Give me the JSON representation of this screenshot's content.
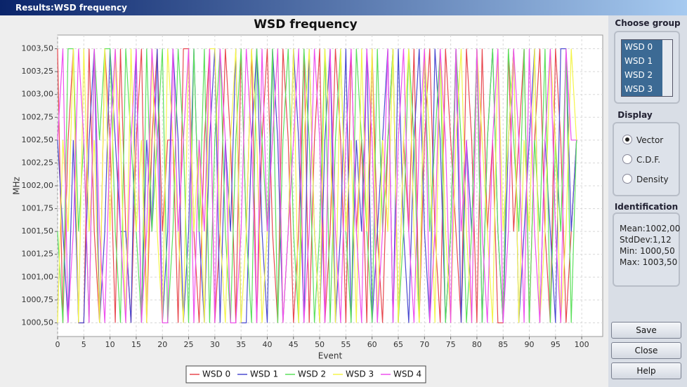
{
  "window": {
    "title": "Results:WSD frequency"
  },
  "chart_data": {
    "type": "line",
    "title": "WSD frequency",
    "x_label": "Event",
    "y_label": "MHz",
    "x": [
      0,
      1,
      2,
      3,
      4,
      5,
      6,
      7,
      8,
      9,
      10,
      11,
      12,
      13,
      14,
      15,
      16,
      17,
      18,
      19,
      20,
      21,
      22,
      23,
      24,
      25,
      26,
      27,
      28,
      29,
      30,
      31,
      32,
      33,
      34,
      35,
      36,
      37,
      38,
      39,
      40,
      41,
      42,
      43,
      44,
      45,
      46,
      47,
      48,
      49,
      50,
      51,
      52,
      53,
      54,
      55,
      56,
      57,
      58,
      59,
      60,
      61,
      62,
      63,
      64,
      65,
      66,
      67,
      68,
      69,
      70,
      71,
      72,
      73,
      74,
      75,
      76,
      77,
      78,
      79,
      80,
      81,
      82,
      83,
      84,
      85,
      86,
      87,
      88,
      89,
      90,
      91,
      92,
      93,
      94,
      95,
      96,
      97,
      98,
      99
    ],
    "xlim": [
      0,
      104
    ],
    "xticks": [
      0,
      5,
      10,
      15,
      20,
      25,
      30,
      35,
      40,
      45,
      50,
      55,
      60,
      65,
      70,
      75,
      80,
      85,
      90,
      95,
      100
    ],
    "ylim": [
      1000.35,
      1003.65
    ],
    "yticks": [
      {
        "value": 1000.5,
        "label": "1000,50"
      },
      {
        "value": 1000.75,
        "label": "1000,75"
      },
      {
        "value": 1001,
        "label": "1001,00"
      },
      {
        "value": 1001.25,
        "label": "1001,25"
      },
      {
        "value": 1001.5,
        "label": "1001,50"
      },
      {
        "value": 1001.75,
        "label": "1001,75"
      },
      {
        "value": 1002,
        "label": "1002,00"
      },
      {
        "value": 1002.25,
        "label": "1002,25"
      },
      {
        "value": 1002.5,
        "label": "1002,50"
      },
      {
        "value": 1002.75,
        "label": "1002,75"
      },
      {
        "value": 1003,
        "label": "1003,00"
      },
      {
        "value": 1003.25,
        "label": "1003,25"
      },
      {
        "value": 1003.5,
        "label": "1003,50"
      }
    ],
    "grid": true,
    "series": [
      {
        "name": "WSD 0",
        "color": "#e8484f",
        "values": [
          1003.5,
          1000.5,
          1002.5,
          1003.5,
          1000.5,
          1000.5,
          1003.5,
          1001.5,
          1000.5,
          1003.5,
          1002.5,
          1000.5,
          1003.5,
          1001.5,
          1000.5,
          1002.5,
          1003.5,
          1000.5,
          1002.5,
          1003.5,
          1001.5,
          1002.5,
          1002.5,
          1000.5,
          1003.5,
          1003.5,
          1001.5,
          1000.5,
          1002.5,
          1003.5,
          1000.5,
          1001.5,
          1003.5,
          1002.5,
          1000.5,
          1003.5,
          1001.5,
          1003.5,
          1000.5,
          1002.5,
          1003.5,
          1001.5,
          1000.5,
          1003.5,
          1002.5,
          1000.5,
          1001.5,
          1003.5,
          1000.5,
          1002.5,
          1003.5,
          1000.5,
          1001.5,
          1003.5,
          1002.5,
          1000.5,
          1003.5,
          1001.5,
          1002.5,
          1000.5,
          1003.5,
          1001.5,
          1000.5,
          1002.5,
          1003.5,
          1000.5,
          1002.5,
          1001.5,
          1003.5,
          1000.5,
          1002.5,
          1003.5,
          1001.5,
          1000.5,
          1003.5,
          1002.5,
          1001.5,
          1000.5,
          1003.5,
          1002.5,
          1000.5,
          1003.5,
          1001.5,
          1002.5,
          1000.5,
          1000.5,
          1003.5,
          1001.5,
          1002.5,
          1003.5,
          1000.5,
          1002.5,
          1003.5,
          1001.5,
          1000.5,
          1003.5,
          1002.5,
          1000.5,
          1001.5,
          1002.5
        ]
      },
      {
        "name": "WSD 1",
        "color": "#4a4ad0",
        "values": [
          1002.5,
          1001.5,
          1000.5,
          1002.5,
          1000.5,
          1000.5,
          1002.5,
          1003.5,
          1000.5,
          1001.5,
          1003.5,
          1002.5,
          1001.5,
          1001.5,
          1000.5,
          1003.5,
          1000.5,
          1002.5,
          1001.5,
          1003.5,
          1000.5,
          1001.5,
          1003.5,
          1002.5,
          1000.5,
          1001.5,
          1003.5,
          1001.5,
          1000.5,
          1002.5,
          1003.5,
          1000.5,
          1002.5,
          1001.5,
          1003.5,
          1000.5,
          1000.5,
          1002.5,
          1003.5,
          1001.5,
          1000.5,
          1003.5,
          1002.5,
          1000.5,
          1001.5,
          1003.5,
          1002.5,
          1000.5,
          1003.5,
          1001.5,
          1000.5,
          1002.5,
          1003.5,
          1000.5,
          1001.5,
          1003.5,
          1000.5,
          1002.5,
          1001.5,
          1003.5,
          1000.5,
          1001.5,
          1002.5,
          1003.5,
          1000.5,
          1003.5,
          1001.5,
          1000.5,
          1002.5,
          1003.5,
          1001.5,
          1000.5,
          1003.5,
          1002.5,
          1000.5,
          1001.5,
          1003.5,
          1000.5,
          1002.5,
          1001.5,
          1003.5,
          1000.5,
          1002.5,
          1003.5,
          1001.5,
          1000.5,
          1002.5,
          1003.5,
          1000.5,
          1001.5,
          1002.5,
          1003.5,
          1000.5,
          1002.5,
          1001.5,
          1000.5,
          1003.5,
          1003.5,
          1001.5,
          1002.5
        ]
      },
      {
        "name": "WSD 2",
        "color": "#5ce05c",
        "values": [
          1001.5,
          1000.5,
          1003.5,
          1003.5,
          1001.5,
          1002.5,
          1000.5,
          1003.5,
          1002.5,
          1003.5,
          1003.5,
          1001.5,
          1000.5,
          1003.5,
          1002.5,
          1001.5,
          1000.5,
          1003.5,
          1001.5,
          1002.5,
          1003.5,
          1000.5,
          1001.5,
          1003.5,
          1002.5,
          1000.5,
          1003.5,
          1001.5,
          1003.5,
          1000.5,
          1002.5,
          1003.5,
          1001.5,
          1000.5,
          1002.5,
          1003.5,
          1001.5,
          1000.5,
          1003.5,
          1002.5,
          1001.5,
          1003.5,
          1000.5,
          1002.5,
          1003.5,
          1001.5,
          1000.5,
          1003.5,
          1002.5,
          1000.5,
          1001.5,
          1003.5,
          1000.5,
          1002.5,
          1003.5,
          1001.5,
          1000.5,
          1003.5,
          1002.5,
          1001.5,
          1000.5,
          1003.5,
          1001.5,
          1002.5,
          1003.5,
          1000.5,
          1001.5,
          1003.5,
          1002.5,
          1000.5,
          1003.5,
          1001.5,
          1002.5,
          1003.5,
          1000.5,
          1001.5,
          1003.5,
          1002.5,
          1000.5,
          1001.5,
          1003.5,
          1000.5,
          1002.5,
          1003.5,
          1001.5,
          1000.5,
          1003.5,
          1002.5,
          1001.5,
          1003.5,
          1000.5,
          1002.5,
          1001.5,
          1003.5,
          1000.5,
          1002.5,
          1001.5,
          1003.5,
          1000.5,
          1002.5
        ]
      },
      {
        "name": "WSD 3",
        "color": "#f4f44a",
        "values": [
          1000.5,
          1002.5,
          1001.5,
          1003.5,
          1000.5,
          1003.5,
          1001.5,
          1002.5,
          1000.5,
          1003.5,
          1001.5,
          1003.5,
          1002.5,
          1000.5,
          1003.5,
          1001.5,
          1002.5,
          1000.5,
          1003.5,
          1001.5,
          1000.5,
          1003.5,
          1002.5,
          1001.5,
          1000.5,
          1003.5,
          1001.5,
          1002.5,
          1000.5,
          1003.5,
          1003.5,
          1001.5,
          1000.5,
          1002.5,
          1003.5,
          1000.5,
          1001.5,
          1003.5,
          1002.5,
          1000.5,
          1001.5,
          1002.5,
          1003.5,
          1000.5,
          1001.5,
          1003.5,
          1000.5,
          1002.5,
          1003.5,
          1001.5,
          1000.5,
          1003.5,
          1002.5,
          1000.5,
          1003.5,
          1001.5,
          1002.5,
          1000.5,
          1003.5,
          1001.5,
          1003.5,
          1000.5,
          1002.5,
          1001.5,
          1003.5,
          1000.5,
          1002.5,
          1003.5,
          1001.5,
          1000.5,
          1003.5,
          1002.5,
          1000.5,
          1003.5,
          1001.5,
          1000.5,
          1002.5,
          1003.5,
          1001.5,
          1000.5,
          1003.5,
          1002.5,
          1001.5,
          1000.5,
          1003.5,
          1001.5,
          1002.5,
          1003.5,
          1000.5,
          1002.5,
          1001.5,
          1003.5,
          1000.5,
          1001.5,
          1003.5,
          1002.5,
          1000.5,
          1001.5,
          1003.5,
          1002.5
        ]
      },
      {
        "name": "WSD 4",
        "color": "#ee50ee",
        "values": [
          1002.5,
          1003.5,
          1000.5,
          1001.5,
          1003.5,
          1002.5,
          1000.5,
          1003.5,
          1001.5,
          1000.5,
          1002.5,
          1003.5,
          1001.5,
          1000.5,
          1002.5,
          1003.5,
          1000.5,
          1001.5,
          1003.5,
          1002.5,
          1000.5,
          1000.5,
          1003.5,
          1001.5,
          1002.5,
          1003.5,
          1000.5,
          1002.5,
          1001.5,
          1003.5,
          1000.5,
          1003.5,
          1002.5,
          1000.5,
          1000.5,
          1001.5,
          1003.5,
          1002.5,
          1000.5,
          1003.5,
          1001.5,
          1002.5,
          1003.5,
          1000.5,
          1001.5,
          1002.5,
          1003.5,
          1000.5,
          1001.5,
          1003.5,
          1002.5,
          1000.5,
          1003.5,
          1001.5,
          1000.5,
          1002.5,
          1003.5,
          1001.5,
          1000.5,
          1003.5,
          1002.5,
          1000.5,
          1001.5,
          1003.5,
          1000.5,
          1002.5,
          1003.5,
          1001.5,
          1000.5,
          1002.5,
          1003.5,
          1000.5,
          1001.5,
          1003.5,
          1002.5,
          1000.5,
          1003.5,
          1001.5,
          1002.5,
          1000.5,
          1003.5,
          1001.5,
          1000.5,
          1002.5,
          1003.5,
          1000.5,
          1001.5,
          1003.5,
          1002.5,
          1000.5,
          1003.5,
          1001.5,
          1000.5,
          1002.5,
          1003.5,
          1001.5,
          1000.5,
          1003.5,
          1002.5,
          1002.5
        ]
      }
    ]
  },
  "sidebar": {
    "choose_group": {
      "title": "Choose group",
      "items": [
        "WSD 0",
        "WSD 1",
        "WSD 2",
        "WSD 3"
      ]
    },
    "display": {
      "title": "Display",
      "options": [
        "Vector",
        "C.D.F.",
        "Density"
      ]
    },
    "identification": {
      "title": "Identification",
      "lines": [
        "Mean:1002,00",
        "StdDev:1,12",
        "Min: 1000,50",
        "Max: 1003,50"
      ]
    },
    "buttons": [
      "Save",
      "Close",
      "Help"
    ]
  }
}
